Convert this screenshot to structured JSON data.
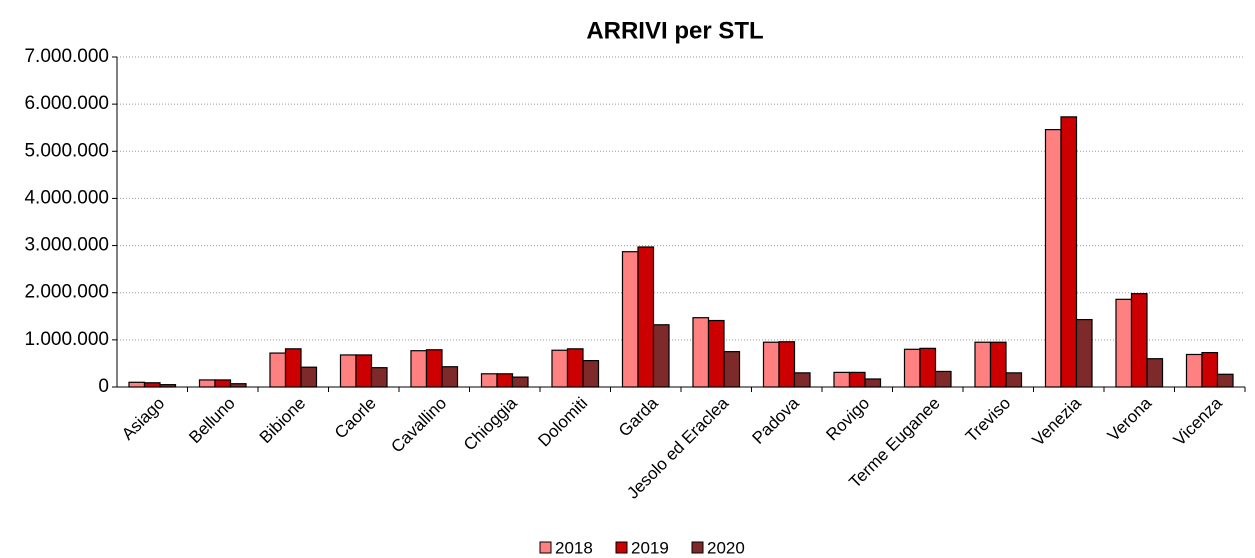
{
  "chart_data": {
    "type": "bar",
    "title": "ARRIVI per STL",
    "categories": [
      "Asiago",
      "Belluno",
      "Bibione",
      "Caorle",
      "Cavallino",
      "Chioggia",
      "Dolomiti",
      "Garda",
      "Jesolo ed Eraclea",
      "Padova",
      "Rovigo",
      "Terme Euganee",
      "Treviso",
      "Venezia",
      "Verona",
      "Vicenza"
    ],
    "series": [
      {
        "name": "2018",
        "color": "#ff8080",
        "values": [
          100000,
          150000,
          720000,
          680000,
          770000,
          280000,
          780000,
          2870000,
          1470000,
          950000,
          310000,
          800000,
          950000,
          5460000,
          1860000,
          690000
        ]
      },
      {
        "name": "2019",
        "color": "#cc0000",
        "values": [
          90000,
          150000,
          810000,
          680000,
          790000,
          280000,
          810000,
          2970000,
          1410000,
          960000,
          310000,
          820000,
          950000,
          5730000,
          1980000,
          730000
        ]
      },
      {
        "name": "2020",
        "color": "#7f2a2a",
        "values": [
          50000,
          70000,
          420000,
          410000,
          430000,
          210000,
          560000,
          1320000,
          750000,
          300000,
          170000,
          330000,
          300000,
          1430000,
          600000,
          270000
        ]
      }
    ],
    "ylim": [
      0,
      7000000
    ],
    "yticks": [
      0,
      {
        "value": 1000000,
        "label": "1.000.000"
      },
      {
        "value": 2000000,
        "label": "2.000.000"
      },
      {
        "value": 3000000,
        "label": "3.000.000"
      },
      {
        "value": 4000000,
        "label": "4.000.000"
      },
      {
        "value": 5000000,
        "label": "5.000.000"
      },
      {
        "value": 6000000,
        "label": "6.000.000"
      },
      {
        "value": 7000000,
        "label": "7.000.000"
      }
    ],
    "grid": true,
    "legend": "bottom"
  }
}
